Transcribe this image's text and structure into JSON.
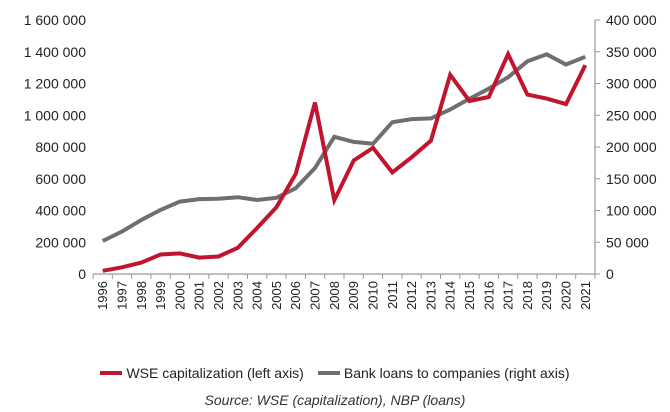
{
  "chart_data": {
    "type": "line",
    "x": [
      "1996",
      "1997",
      "1998",
      "1999",
      "2000",
      "2001",
      "2002",
      "2003",
      "2004",
      "2005",
      "2006",
      "2007",
      "2008",
      "2009",
      "2010",
      "2011",
      "2012",
      "2013",
      "2014",
      "2015",
      "2016",
      "2017",
      "2018",
      "2019",
      "2020",
      "2021"
    ],
    "series": [
      {
        "name": "WSE capitalization (left axis)",
        "axis": "left",
        "color": "#c0152f",
        "values": [
          20000,
          42000,
          72000,
          123000,
          130000,
          103000,
          110000,
          165000,
          290000,
          420000,
          630000,
          1080000,
          465000,
          715000,
          795000,
          640000,
          735000,
          840000,
          1255000,
          1090000,
          1115000,
          1385000,
          1130000,
          1105000,
          1070000,
          1315000
        ]
      },
      {
        "name": "Bank loans to companies (right axis)",
        "axis": "right",
        "color": "#6f6f6f",
        "values": [
          52000,
          67000,
          85000,
          101000,
          114000,
          118000,
          118500,
          121000,
          116500,
          120000,
          135000,
          167000,
          216000,
          208000,
          205000,
          239000,
          244000,
          245000,
          259000,
          276000,
          292000,
          310000,
          335000,
          346000,
          330000,
          342000
        ]
      }
    ],
    "y_left": {
      "min": 0,
      "max": 1600000,
      "step": 200000,
      "ticks": [
        "0",
        "200 000",
        "400 000",
        "600 000",
        "800 000",
        "1 000 000",
        "1 200 000",
        "1 400 000",
        "1 600 000"
      ]
    },
    "y_right": {
      "min": 0,
      "max": 400000,
      "step": 50000,
      "ticks": [
        "0",
        "50 000",
        "100 000",
        "150 000",
        "200 000",
        "250 000",
        "300 000",
        "350 000",
        "400 000"
      ]
    },
    "grid": false,
    "legend_position": "bottom"
  },
  "legend": {
    "item1": "WSE capitalization (left axis)",
    "item2": "Bank loans to companies (right axis)",
    "color1": "#c0152f",
    "color2": "#6f6f6f"
  },
  "source": "Source: WSE (capitalization), NBP (loans)"
}
